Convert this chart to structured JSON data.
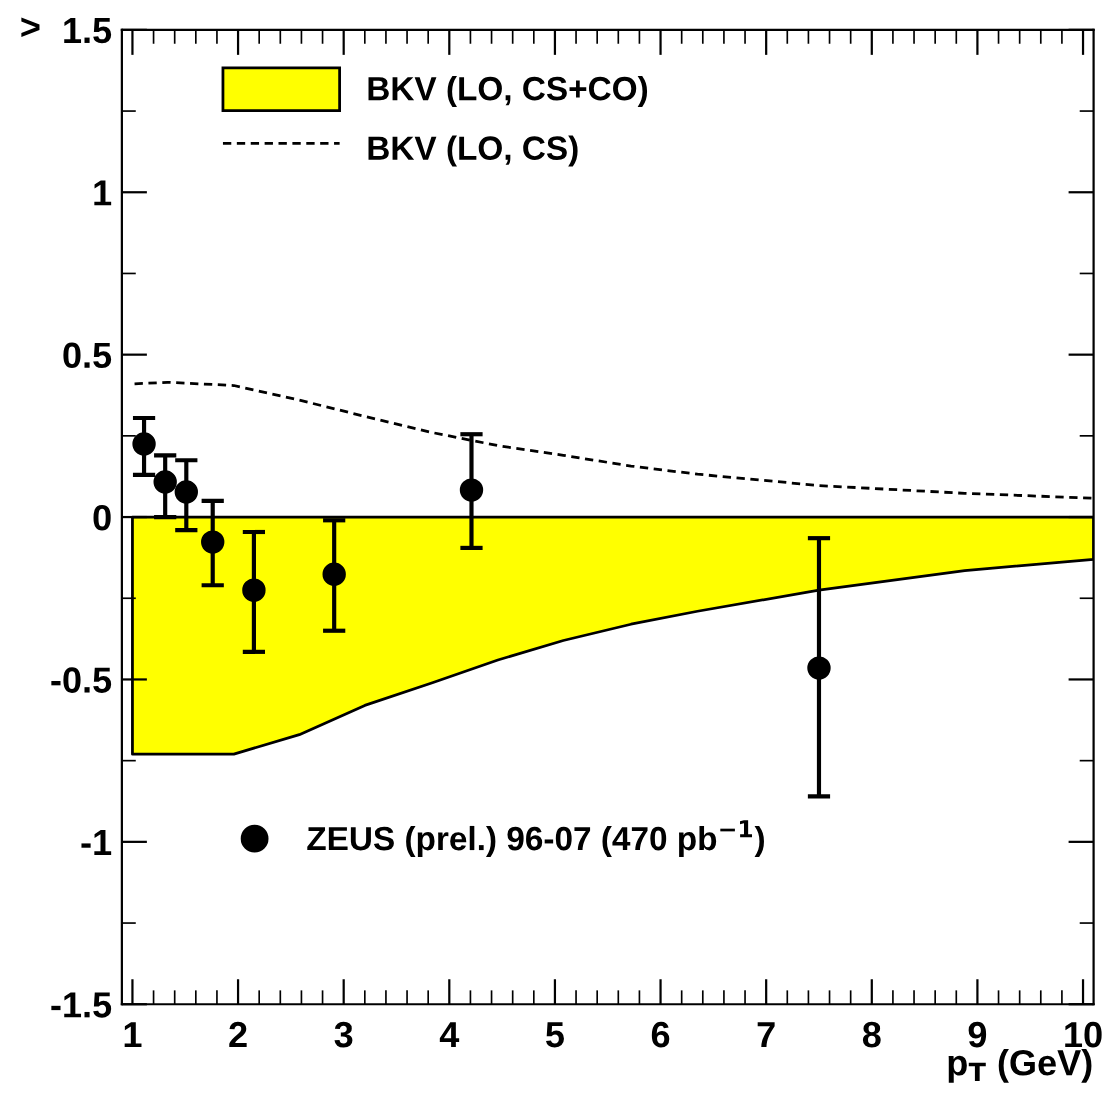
{
  "chart_data": {
    "type": "scatter",
    "ylabel": ">",
    "xlabel": "p$_{T}$ (GeV)",
    "xlim": [
      0.9,
      10.1
    ],
    "xticks": [
      1,
      2,
      3,
      4,
      5,
      6,
      7,
      8,
      9,
      10
    ],
    "ylim": [
      -1.5,
      1.5
    ],
    "yticks": [
      -1.5,
      -1,
      -0.5,
      0,
      0.5,
      1,
      1.5
    ],
    "grid": false,
    "legend": "top left",
    "series": [
      {
        "name": "BKV (LO, CS+CO)",
        "type": "area",
        "color": "#ffff00",
        "x": [
          1.0,
          1.96,
          2.58,
          3.2,
          3.84,
          4.46,
          5.08,
          5.72,
          6.35,
          7.5,
          8.88,
          10.1
        ],
        "values": [
          -0.73,
          -0.73,
          -0.67,
          -0.58,
          -0.51,
          -0.44,
          -0.38,
          -0.33,
          -0.29,
          -0.225,
          -0.165,
          -0.13
        ]
      },
      {
        "name": "BKV (LO, CS)",
        "type": "line",
        "color": "#000000",
        "line_style": "dashed",
        "x": [
          1.02,
          1.33,
          1.96,
          2.58,
          3.2,
          3.84,
          4.46,
          5.08,
          5.72,
          6.35,
          7.5,
          8.88,
          10.1
        ],
        "values": [
          0.41,
          0.415,
          0.405,
          0.36,
          0.31,
          0.26,
          0.22,
          0.19,
          0.157,
          0.132,
          0.097,
          0.073,
          0.058
        ]
      },
      {
        "name": "ZEUS (prel.) 96-07 (470 pb$^{−1}$)",
        "color": "#000000",
        "marker": "circle",
        "x": [
          1.11,
          1.31,
          1.51,
          1.76,
          2.15,
          2.91,
          4.21,
          7.5
        ],
        "values": [
          0.225,
          0.108,
          0.077,
          -0.077,
          -0.225,
          -0.176,
          0.083,
          -0.465
        ],
        "errors": [
          [
            0.13,
            0.305
          ],
          [
            0.0,
            0.19
          ],
          [
            -0.04,
            0.175
          ],
          [
            -0.21,
            0.05
          ],
          [
            -0.415,
            -0.046
          ],
          [
            -0.35,
            -0.01
          ],
          [
            -0.095,
            0.255
          ],
          [
            -0.86,
            -0.065
          ]
        ]
      }
    ]
  }
}
